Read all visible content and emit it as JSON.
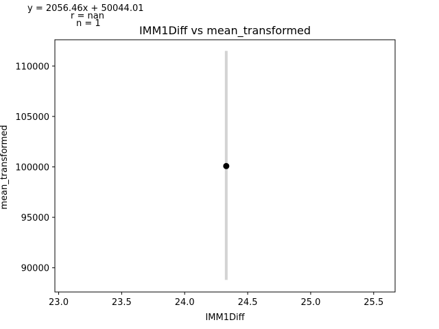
{
  "annotations": {
    "equation": "y = 2056.46x + 50044.01",
    "r": "r = nan",
    "n": "n = 1"
  },
  "chart_data": {
    "type": "scatter",
    "title": "IMM1Diff vs mean_transformed",
    "xlabel": "IMM1Diff",
    "ylabel": "mean_transformed",
    "xlim": [
      22.97,
      25.67
    ],
    "ylim": [
      87600,
      112600
    ],
    "xticks": [
      23.0,
      23.5,
      24.0,
      24.5,
      25.0,
      25.5
    ],
    "xtick_labels": [
      "23.0",
      "23.5",
      "24.0",
      "24.5",
      "25.0",
      "25.5"
    ],
    "yticks": [
      90000,
      95000,
      100000,
      105000,
      110000
    ],
    "ytick_labels": [
      "90000",
      "95000",
      "100000",
      "105000",
      "110000"
    ],
    "grid": false,
    "points": [
      {
        "x": 24.33,
        "y": 100080
      }
    ],
    "regression_band": {
      "x": 24.33,
      "ymin": 88800,
      "ymax": 111500,
      "color": "#d3d3d3"
    },
    "point_color": "#000000"
  }
}
